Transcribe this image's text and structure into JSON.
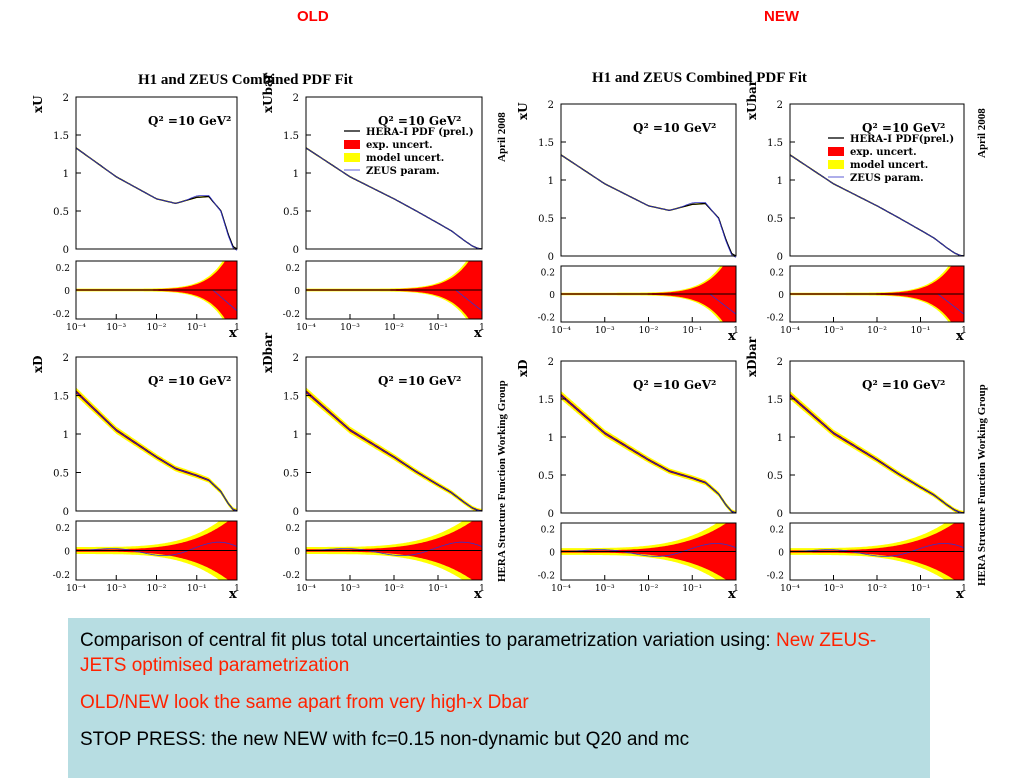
{
  "headers": {
    "old": "OLD",
    "new": "NEW"
  },
  "figures": [
    {
      "id": "old",
      "title": "H1 and ZEUS Combined PDF Fit",
      "side_top": "April 2008",
      "side_bottom": "HERA Structure Function Working Group"
    },
    {
      "id": "new",
      "title": "H1 and ZEUS Combined PDF Fit",
      "side_top": "April 2008",
      "side_bottom": "HERA Structure Function Working Group"
    }
  ],
  "q2_label": "Q² =10 GeV²",
  "legend_old": [
    "HERA-I PDF (prel.)",
    "exp. uncert.",
    "model uncert.",
    "ZEUS param."
  ],
  "legend_new": [
    "HERA-I PDF(prel.)",
    "exp. uncert.",
    "model uncert.",
    "ZEUS param."
  ],
  "colors": {
    "central": "#000000",
    "exp": "#ff0000",
    "model": "#ffff00",
    "zeus": "#3333cc"
  },
  "chart_data": {
    "type": "line",
    "x_scale": "log",
    "xlim": [
      0.0001,
      1
    ],
    "x_ticks": [
      "10⁻⁴",
      "10⁻³",
      "10⁻²",
      "10⁻¹",
      "1"
    ],
    "xlabel": "x",
    "upper_ylim": [
      0,
      2
    ],
    "upper_yticks": [
      "0",
      "0.5",
      "1",
      "1.5",
      "2"
    ],
    "ratio_ylim": [
      -0.25,
      0.25
    ],
    "ratio_yticks": [
      "-0.2",
      "0",
      "0.2"
    ],
    "series_names": [
      "HERA-I PDF (prel.)",
      "exp. uncert.",
      "model uncert.",
      "ZEUS param."
    ],
    "panels": [
      {
        "ylabel": "xU",
        "x": [
          0.0001,
          0.001,
          0.01,
          0.03,
          0.1,
          0.2,
          0.4,
          0.6,
          0.8,
          1
        ],
        "central": [
          1.33,
          0.95,
          0.66,
          0.6,
          0.68,
          0.69,
          0.5,
          0.2,
          0.03,
          0.0
        ]
      },
      {
        "ylabel": "xUbar",
        "x": [
          0.0001,
          0.001,
          0.01,
          0.03,
          0.1,
          0.2,
          0.4,
          0.6,
          0.8,
          1
        ],
        "central": [
          1.33,
          0.95,
          0.66,
          0.51,
          0.34,
          0.24,
          0.11,
          0.04,
          0.01,
          0.0
        ]
      },
      {
        "ylabel": "xD",
        "x": [
          0.0001,
          0.001,
          0.01,
          0.03,
          0.1,
          0.2,
          0.4,
          0.6,
          0.8,
          1
        ],
        "central": [
          1.55,
          1.05,
          0.7,
          0.55,
          0.46,
          0.4,
          0.25,
          0.1,
          0.02,
          0.0
        ]
      },
      {
        "ylabel": "xDbar",
        "x": [
          0.0001,
          0.001,
          0.01,
          0.03,
          0.1,
          0.2,
          0.4,
          0.6,
          0.8,
          1
        ],
        "central": [
          1.55,
          1.05,
          0.7,
          0.52,
          0.34,
          0.24,
          0.11,
          0.04,
          0.01,
          0.0
        ]
      }
    ]
  },
  "caption": {
    "line1_prefix": "Comparison of central fit plus total uncertainties to parametrization variation using: ",
    "line1_highlight": "New ZEUS-JETS optimised parametrization",
    "line2": "OLD/NEW look the same apart from very high-x Dbar",
    "line3": "STOP PRESS: the new NEW with fc=0.15 non-dynamic but Q20 and mc"
  }
}
